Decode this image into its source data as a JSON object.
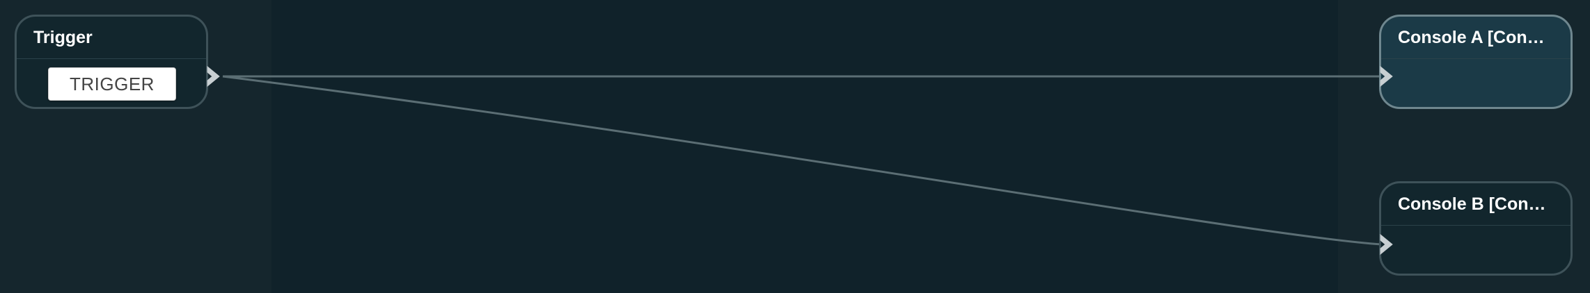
{
  "nodes": {
    "trigger": {
      "title": "Trigger",
      "button_label": "TRIGGER"
    },
    "console_a": {
      "title": "Console A [Con…"
    },
    "console_b": {
      "title": "Console B [Con…"
    }
  },
  "colors": {
    "canvas": "#10222a",
    "lane": "#15262d",
    "node_fill": "#12262d",
    "node_selected_fill": "#1b3a47",
    "node_border": "#3e5259",
    "wire": "#5b6e74",
    "port": "#c8cfd2"
  }
}
